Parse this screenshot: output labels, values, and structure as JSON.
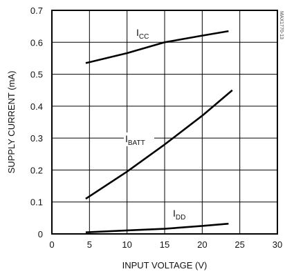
{
  "chart_data": {
    "type": "line",
    "title": "",
    "xlabel": "INPUT VOLTAGE (V)",
    "ylabel": "SUPPLY CURRENT (mA)",
    "xlim": [
      0,
      30
    ],
    "ylim": [
      0,
      0.7
    ],
    "x_ticks": [
      "0",
      "5",
      "10",
      "15",
      "20",
      "25",
      "30"
    ],
    "y_ticks": [
      "0",
      "0.1",
      "0.2",
      "0.3",
      "0.4",
      "0.5",
      "0.6",
      "0.7"
    ],
    "grid": true,
    "series": [
      {
        "name": "ICC",
        "label_main": "I",
        "label_sub": "CC",
        "x": [
          4.5,
          10,
          15,
          20,
          23.5
        ],
        "y": [
          0.535,
          0.566,
          0.6,
          0.621,
          0.635
        ]
      },
      {
        "name": "IBATT",
        "label_main": "I",
        "label_sub": "BATT",
        "x": [
          4.5,
          10,
          15,
          20,
          24
        ],
        "y": [
          0.11,
          0.195,
          0.28,
          0.37,
          0.45
        ]
      },
      {
        "name": "IDD",
        "label_main": "I",
        "label_sub": "DD",
        "x": [
          4.5,
          10,
          15,
          20,
          23.5
        ],
        "y": [
          0.005,
          0.011,
          0.016,
          0.025,
          0.032
        ]
      }
    ],
    "watermark": "MAX1770-13"
  }
}
